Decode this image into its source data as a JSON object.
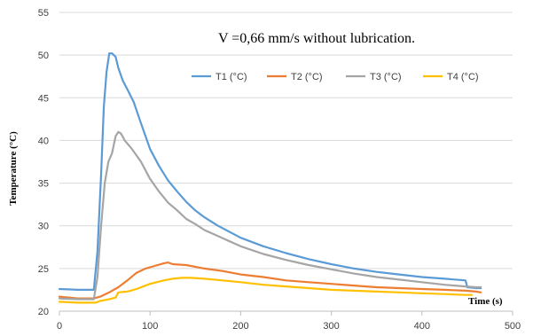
{
  "chart_data": {
    "type": "line",
    "annotation": "V =0,66 mm/s without lubrication.",
    "xlabel": "Time (s)",
    "ylabel": "Temperature (°C)",
    "xlim": [
      0,
      500
    ],
    "ylim": [
      20,
      55
    ],
    "xticks": [
      0,
      100,
      200,
      300,
      400,
      500
    ],
    "yticks": [
      20,
      25,
      30,
      35,
      40,
      45,
      50,
      55
    ],
    "grid": "horizontal",
    "legend_position": "top",
    "series": [
      {
        "name": "T1 (°C)",
        "color": "#5B9BD5",
        "points": [
          [
            0,
            22.6
          ],
          [
            10,
            22.55
          ],
          [
            20,
            22.5
          ],
          [
            30,
            22.5
          ],
          [
            38,
            22.5
          ],
          [
            42,
            27
          ],
          [
            46,
            36
          ],
          [
            49,
            44
          ],
          [
            52,
            48
          ],
          [
            55,
            50.2
          ],
          [
            58,
            50.2
          ],
          [
            62,
            49.8
          ],
          [
            65,
            48.5
          ],
          [
            70,
            47
          ],
          [
            75,
            46
          ],
          [
            82,
            44.5
          ],
          [
            90,
            42
          ],
          [
            100,
            39
          ],
          [
            110,
            37
          ],
          [
            120,
            35.3
          ],
          [
            130,
            34
          ],
          [
            140,
            32.8
          ],
          [
            150,
            31.8
          ],
          [
            160,
            31
          ],
          [
            175,
            30
          ],
          [
            200,
            28.6
          ],
          [
            225,
            27.6
          ],
          [
            250,
            26.8
          ],
          [
            275,
            26.1
          ],
          [
            300,
            25.5
          ],
          [
            325,
            25
          ],
          [
            350,
            24.6
          ],
          [
            375,
            24.3
          ],
          [
            400,
            24
          ],
          [
            425,
            23.8
          ],
          [
            448,
            23.6
          ],
          [
            450,
            22.8
          ],
          [
            460,
            22.7
          ],
          [
            465,
            22.7
          ]
        ]
      },
      {
        "name": "T2 (°C)",
        "color": "#ED7D31",
        "points": [
          [
            0,
            21.7
          ],
          [
            20,
            21.5
          ],
          [
            38,
            21.5
          ],
          [
            45,
            21.7
          ],
          [
            55,
            22.2
          ],
          [
            65,
            22.8
          ],
          [
            75,
            23.6
          ],
          [
            85,
            24.5
          ],
          [
            95,
            25
          ],
          [
            105,
            25.3
          ],
          [
            115,
            25.6
          ],
          [
            120,
            25.7
          ],
          [
            125,
            25.5
          ],
          [
            140,
            25.4
          ],
          [
            160,
            25
          ],
          [
            180,
            24.7
          ],
          [
            200,
            24.3
          ],
          [
            225,
            24
          ],
          [
            250,
            23.6
          ],
          [
            275,
            23.4
          ],
          [
            300,
            23.2
          ],
          [
            325,
            23
          ],
          [
            350,
            22.8
          ],
          [
            375,
            22.7
          ],
          [
            400,
            22.6
          ],
          [
            425,
            22.5
          ],
          [
            448,
            22.4
          ],
          [
            460,
            22.3
          ],
          [
            465,
            22.2
          ]
        ]
      },
      {
        "name": "T3 (°C)",
        "color": "#A5A5A5",
        "points": [
          [
            0,
            21.5
          ],
          [
            20,
            21.4
          ],
          [
            38,
            21.4
          ],
          [
            42,
            24
          ],
          [
            46,
            30
          ],
          [
            50,
            35
          ],
          [
            54,
            37.5
          ],
          [
            58,
            38.5
          ],
          [
            62,
            40.5
          ],
          [
            65,
            41
          ],
          [
            68,
            40.8
          ],
          [
            72,
            40
          ],
          [
            80,
            39
          ],
          [
            90,
            37.5
          ],
          [
            100,
            35.5
          ],
          [
            110,
            34
          ],
          [
            120,
            32.7
          ],
          [
            130,
            31.8
          ],
          [
            140,
            30.8
          ],
          [
            150,
            30.2
          ],
          [
            160,
            29.5
          ],
          [
            175,
            28.8
          ],
          [
            200,
            27.6
          ],
          [
            225,
            26.7
          ],
          [
            250,
            26
          ],
          [
            275,
            25.4
          ],
          [
            300,
            24.9
          ],
          [
            325,
            24.4
          ],
          [
            350,
            24
          ],
          [
            375,
            23.7
          ],
          [
            400,
            23.4
          ],
          [
            425,
            23.1
          ],
          [
            448,
            22.9
          ],
          [
            460,
            22.8
          ],
          [
            465,
            22.8
          ]
        ]
      },
      {
        "name": "T4 (°C)",
        "color": "#FFC000",
        "points": [
          [
            0,
            21.1
          ],
          [
            20,
            21
          ],
          [
            40,
            21
          ],
          [
            45,
            21.2
          ],
          [
            55,
            21.4
          ],
          [
            62,
            21.6
          ],
          [
            65,
            22.2
          ],
          [
            75,
            22.3
          ],
          [
            85,
            22.6
          ],
          [
            100,
            23.2
          ],
          [
            115,
            23.6
          ],
          [
            125,
            23.8
          ],
          [
            135,
            23.9
          ],
          [
            145,
            23.9
          ],
          [
            160,
            23.8
          ],
          [
            180,
            23.6
          ],
          [
            200,
            23.4
          ],
          [
            225,
            23.1
          ],
          [
            250,
            22.9
          ],
          [
            275,
            22.7
          ],
          [
            300,
            22.5
          ],
          [
            325,
            22.4
          ],
          [
            350,
            22.3
          ],
          [
            375,
            22.2
          ],
          [
            400,
            22.1
          ],
          [
            425,
            22
          ],
          [
            448,
            21.9
          ],
          [
            455,
            21.9
          ]
        ]
      }
    ]
  }
}
